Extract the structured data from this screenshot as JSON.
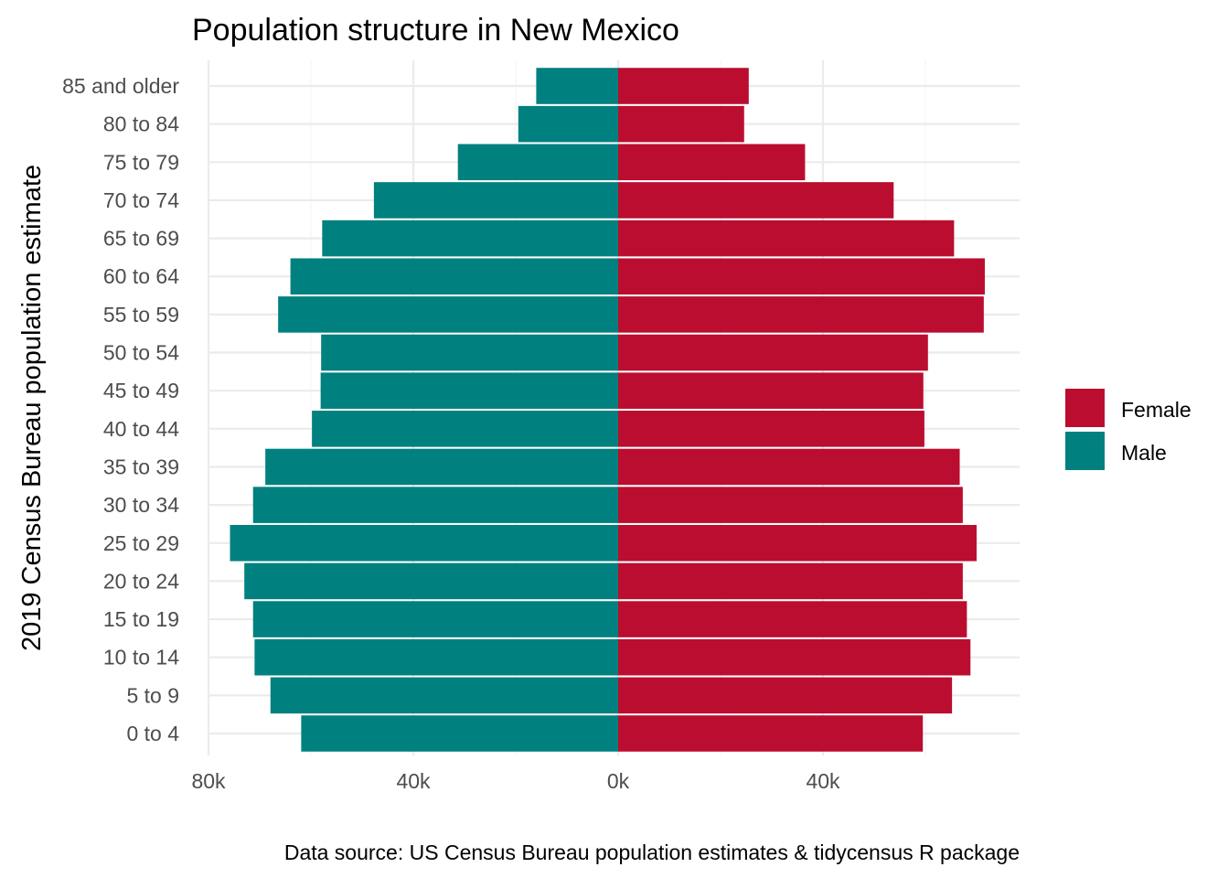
{
  "chart_data": {
    "type": "bar",
    "orientation": "horizontal",
    "title": "Population structure in New Mexico",
    "ylabel": "2019 Census Bureau population estimate",
    "xlabel": "",
    "caption": "Data source: US Census Bureau population estimates & tidycensus R package",
    "categories": [
      "0 to 4",
      "5 to 9",
      "10 to 14",
      "15 to 19",
      "20 to 24",
      "25 to 29",
      "30 to 34",
      "35 to 39",
      "40 to 44",
      "45 to 49",
      "50 to 54",
      "55 to 59",
      "60 to 64",
      "65 to 69",
      "70 to 74",
      "75 to 79",
      "80 to 84",
      "85 and older"
    ],
    "series": [
      {
        "name": "Female",
        "color": "#BB0D2F",
        "values": [
          59500,
          65200,
          68800,
          68100,
          67300,
          70000,
          67300,
          66700,
          59800,
          59600,
          60500,
          71400,
          71600,
          65600,
          53800,
          36500,
          24600,
          25500
        ]
      },
      {
        "name": "Male",
        "color": "#00807F",
        "values": [
          -61900,
          -67900,
          -71000,
          -71300,
          -73000,
          -75800,
          -71300,
          -68900,
          -59800,
          -58100,
          -58000,
          -66400,
          -64000,
          -57800,
          -47700,
          -31300,
          -19500,
          -16000
        ]
      }
    ],
    "xlim": [
      -80000,
      80000
    ],
    "x_ticks": [
      -80000,
      -40000,
      0,
      40000
    ],
    "x_tick_labels": [
      "80k",
      "40k",
      "0k",
      "40k"
    ],
    "grid": true,
    "legend": {
      "position": "right",
      "entries": [
        "Female",
        "Male"
      ]
    }
  }
}
